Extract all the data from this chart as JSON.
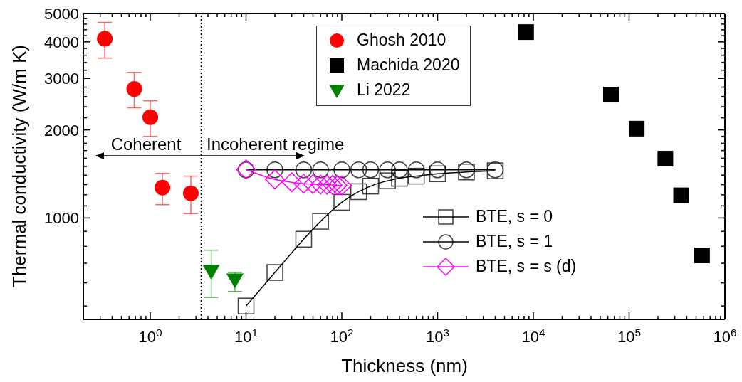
{
  "chart_data": {
    "type": "scatter",
    "xlabel": "Thickness (nm)",
    "ylabel": "Thermal conductivity (W/m K)",
    "log": "xy",
    "legend": "top right",
    "xlim": [
      0.2,
      1000000
    ],
    "ylim": [
      450,
      5000
    ],
    "xticks": [
      {
        "value": 0.2,
        "label": null
      },
      {
        "value": 0.3,
        "label": null
      },
      {
        "value": 0.4,
        "label": null
      },
      {
        "value": 0.5,
        "label": null
      },
      {
        "value": 0.6,
        "label": null
      },
      {
        "value": 0.7,
        "label": null
      },
      {
        "value": 0.8,
        "label": null
      },
      {
        "value": 0.9,
        "label": null
      },
      {
        "value": 1,
        "label": "10$^{0}$"
      },
      {
        "value": 2,
        "label": null
      },
      {
        "value": 3,
        "label": null
      },
      {
        "value": 4,
        "label": null
      },
      {
        "value": 5,
        "label": null
      },
      {
        "value": 6,
        "label": null
      },
      {
        "value": 7,
        "label": null
      },
      {
        "value": 8,
        "label": null
      },
      {
        "value": 9,
        "label": null
      },
      {
        "value": 10,
        "label": "10$^{1}$"
      },
      {
        "value": 20,
        "label": null
      },
      {
        "value": 30,
        "label": null
      },
      {
        "value": 40,
        "label": null
      },
      {
        "value": 50,
        "label": null
      },
      {
        "value": 60,
        "label": null
      },
      {
        "value": 70,
        "label": null
      },
      {
        "value": 80,
        "label": null
      },
      {
        "value": 90,
        "label": null
      },
      {
        "value": 100,
        "label": "10$^{2}$"
      },
      {
        "value": 200,
        "label": null
      },
      {
        "value": 300,
        "label": null
      },
      {
        "value": 400,
        "label": null
      },
      {
        "value": 500,
        "label": null
      },
      {
        "value": 600,
        "label": null
      },
      {
        "value": 700,
        "label": null
      },
      {
        "value": 800,
        "label": null
      },
      {
        "value": 900,
        "label": null
      },
      {
        "value": 1000,
        "label": "10$^{3}$"
      },
      {
        "value": 2000,
        "label": null
      },
      {
        "value": 3000,
        "label": null
      },
      {
        "value": 4000,
        "label": null
      },
      {
        "value": 5000,
        "label": null
      },
      {
        "value": 6000,
        "label": null
      },
      {
        "value": 7000,
        "label": null
      },
      {
        "value": 8000,
        "label": null
      },
      {
        "value": 9000,
        "label": null
      },
      {
        "value": 10000,
        "label": "10$^{4}$"
      },
      {
        "value": 20000,
        "label": null
      },
      {
        "value": 30000,
        "label": null
      },
      {
        "value": 40000,
        "label": null
      },
      {
        "value": 50000,
        "label": null
      },
      {
        "value": 60000,
        "label": null
      },
      {
        "value": 70000,
        "label": null
      },
      {
        "value": 80000,
        "label": null
      },
      {
        "value": 90000,
        "label": null
      },
      {
        "value": 100000,
        "label": "10$^{5}$"
      },
      {
        "value": 200000,
        "label": null
      },
      {
        "value": 300000,
        "label": null
      },
      {
        "value": 400000,
        "label": null
      },
      {
        "value": 500000,
        "label": null
      },
      {
        "value": 600000,
        "label": null
      },
      {
        "value": 700000,
        "label": null
      },
      {
        "value": 800000,
        "label": null
      },
      {
        "value": 900000,
        "label": null
      },
      {
        "value": 1000000,
        "label": "10$^{6}$"
      }
    ],
    "yticks": [
      {
        "value": 500,
        "label": null
      },
      {
        "value": 600,
        "label": null
      },
      {
        "value": 700,
        "label": null
      },
      {
        "value": 800,
        "label": null
      },
      {
        "value": 900,
        "label": null
      },
      1000,
      {
        "value": 1100,
        "label": null
      },
      {
        "value": 1200,
        "label": null
      },
      {
        "value": 1300,
        "label": null
      },
      {
        "value": 1400,
        "label": null
      },
      {
        "value": 1500,
        "label": null
      },
      {
        "value": 1600,
        "label": null
      },
      {
        "value": 1700,
        "label": null
      },
      {
        "value": 1800,
        "label": null
      },
      {
        "value": 1900,
        "label": null
      },
      2000,
      {
        "value": 2200,
        "label": null
      },
      {
        "value": 2400,
        "label": null
      },
      {
        "value": 2600,
        "label": null
      },
      {
        "value": 2800,
        "label": null
      },
      3000,
      {
        "value": 3200,
        "label": null
      },
      {
        "value": 3400,
        "label": null
      },
      {
        "value": 3600,
        "label": null
      },
      {
        "value": 3800,
        "label": null
      },
      4000,
      {
        "value": 4200,
        "label": null
      },
      {
        "value": 4400,
        "label": null
      },
      {
        "value": 4600,
        "label": null
      },
      {
        "value": 4800,
        "label": null
      },
      5000
    ],
    "series": [
      {
        "name": "Ghosh 2010",
        "marker": "circle",
        "color": "#ff0000",
        "x": [
          0.335,
          0.68,
          1.0,
          1.34,
          2.65
        ],
        "values": [
          4100,
          2760,
          2210,
          1270,
          1215
        ],
        "errors": [
          [
            3520,
            4660
          ],
          [
            2380,
            3145
          ],
          [
            1900,
            2515
          ],
          [
            1110,
            1420
          ],
          [
            1035,
            1390
          ]
        ]
      },
      {
        "name": "Machida 2020",
        "marker": "square",
        "color": "#000000",
        "x": [
          8400,
          64600,
          120000,
          239000,
          349000,
          577000
        ],
        "values": [
          4320,
          2640,
          2020,
          1595,
          1195,
          745
        ]
      },
      {
        "name": "Li 2022",
        "marker": "triangle",
        "color": "#008000",
        "x": [
          4.33,
          7.65
        ],
        "values": [
          658,
          615
        ],
        "errors": [
          [
            535,
            776
          ],
          [
            561,
            651
          ]
        ]
      },
      {
        "name": "BTE, s = 0",
        "type": "line",
        "marker": "square",
        "color": "#000000",
        "x": [
          10,
          20,
          40,
          60,
          100,
          150,
          200,
          300,
          400,
          600,
          1000,
          2000,
          4000
        ],
        "values": [
          500,
          651,
          846,
          974,
          1131,
          1230,
          1285,
          1340,
          1367,
          1390,
          1416,
          1436,
          1450
        ]
      },
      {
        "name": "BTE, s = 1",
        "type": "line",
        "marker": "circle",
        "color": "#000000",
        "x": [
          10,
          20,
          40,
          60,
          100,
          150,
          200,
          300,
          400,
          600,
          1000,
          2000,
          4000
        ],
        "values": [
          1460,
          1460,
          1460,
          1460,
          1460,
          1460,
          1460,
          1460,
          1460,
          1460,
          1460,
          1460,
          1460
        ]
      },
      {
        "name": "BTE, s = s (d)",
        "type": "line",
        "marker": "diamond",
        "color": "#ff00ff",
        "x": [
          10,
          20,
          30,
          40,
          50,
          60,
          70,
          80,
          90,
          100
        ],
        "values": [
          1465,
          1355,
          1325,
          1310,
          1305,
          1300,
          1298,
          1296,
          1294,
          1292
        ]
      }
    ],
    "ref_lines": [
      {
        "axis": "x",
        "value": 3.4,
        "line_style": "dotted",
        "color": "#000000"
      }
    ],
    "annotations": [
      "Coherent",
      "Incoherent regime"
    ]
  }
}
